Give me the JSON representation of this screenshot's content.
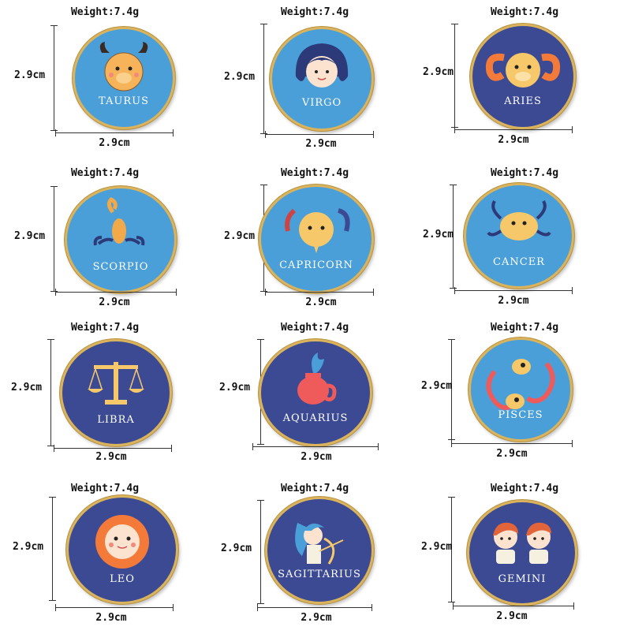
{
  "colors": {
    "light_blue": "#4a9fd8",
    "dark_blue": "#3b4a92",
    "gold": "#d9b35e"
  },
  "pins": [
    {
      "name": "TAURUS",
      "weight": "Weight:7.4g",
      "height": "2.9cm",
      "width": "2.9cm",
      "bg": "light",
      "icon": "taurus-icon"
    },
    {
      "name": "VIRGO",
      "weight": "Weight:7.4g",
      "height": "2.9cm",
      "width": "2.9cm",
      "bg": "light",
      "icon": "virgo-icon"
    },
    {
      "name": "ARIES",
      "weight": "Weight:7.4g",
      "height": "2.9cm",
      "width": "2.9cm",
      "bg": "dark",
      "icon": "aries-icon"
    },
    {
      "name": "SCORPIO",
      "weight": "Weight:7.4g",
      "height": "2.9cm",
      "width": "2.9cm",
      "bg": "light",
      "icon": "scorpio-icon"
    },
    {
      "name": "CAPRICORN",
      "weight": "Weight:7.4g",
      "height": "2.9cm",
      "width": "2.9cm",
      "bg": "light",
      "icon": "capricorn-icon"
    },
    {
      "name": "CANCER",
      "weight": "Weight:7.4g",
      "height": "2.9cm",
      "width": "2.9cm",
      "bg": "light",
      "icon": "cancer-icon"
    },
    {
      "name": "LIBRA",
      "weight": "Weight:7.4g",
      "height": "2.9cm",
      "width": "2.9cm",
      "bg": "dark",
      "icon": "libra-icon"
    },
    {
      "name": "AQUARIUS",
      "weight": "Weight:7.4g",
      "height": "2.9cm",
      "width": "2.9cm",
      "bg": "dark",
      "icon": "aquarius-icon"
    },
    {
      "name": "PISCES",
      "weight": "Weight:7.4g",
      "height": "2.9cm",
      "width": "2.9cm",
      "bg": "light",
      "icon": "pisces-icon"
    },
    {
      "name": "LEO",
      "weight": "Weight:7.4g",
      "height": "2.9cm",
      "width": "2.9cm",
      "bg": "dark",
      "icon": "leo-icon"
    },
    {
      "name": "SAGITTARIUS",
      "weight": "Weight:7.4g",
      "height": "2.9cm",
      "width": "2.9cm",
      "bg": "dark",
      "icon": "sagittarius-icon"
    },
    {
      "name": "GEMINI",
      "weight": "Weight:7.4g",
      "height": "2.9cm",
      "width": "2.9cm",
      "bg": "dark",
      "icon": "gemini-icon"
    }
  ]
}
